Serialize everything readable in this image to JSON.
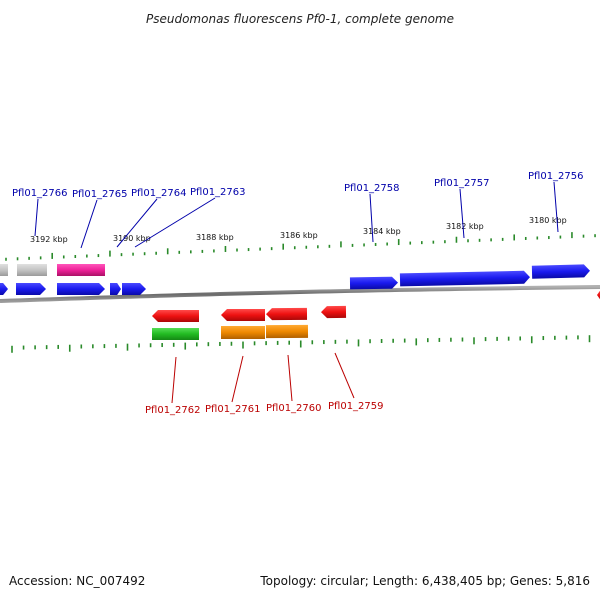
{
  "title": "Pseudomonas fluorescens Pf0-1, complete genome",
  "footer": {
    "accession": "Accession: NC_007492",
    "topology": "Topology: circular; Length: 6,438,405 bp; Genes: 5,816"
  },
  "colors": {
    "backbone": "#7a7a7a",
    "tick": "#2a8a2a",
    "forward_gene": "#1a1aee",
    "reverse_gene": "#ee1111",
    "grey_gene": "#c4c4c4",
    "pink_gene": "#ee2299",
    "green_gene": "#22bb22",
    "orange_gene": "#ee8800",
    "label_top": "#0000aa",
    "label_bottom": "#bb0000"
  },
  "scale_labels": [
    "3192 kbp",
    "3190 kbp",
    "3188 kbp",
    "3186 kbp",
    "3184 kbp",
    "3182 kbp",
    "3180 kbp"
  ],
  "top_labels": [
    "Pfl01_2766",
    "Pfl01_2765",
    "Pfl01_2764",
    "Pfl01_2763",
    "Pfl01_2758",
    "Pfl01_2757",
    "Pfl01_2756"
  ],
  "bottom_labels": [
    "Pfl01_2762",
    "Pfl01_2761",
    "Pfl01_2760",
    "Pfl01_2759"
  ]
}
